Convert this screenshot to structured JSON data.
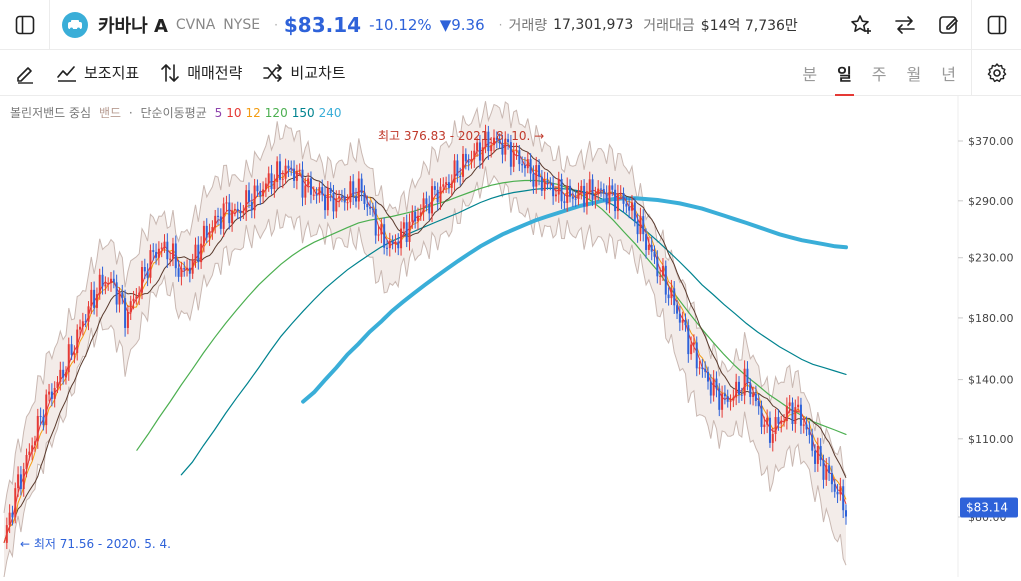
{
  "header": {
    "name": "카바나 A",
    "symbol": "CVNA",
    "exchange": "NYSE",
    "price": "$83.14",
    "change_pct": "-10.12%",
    "change_abs": "▼9.36",
    "volume_label": "거래량",
    "volume_value": "17,301,973",
    "turnover_label": "거래대금",
    "turnover_value": "$14억 7,736만"
  },
  "toolbar": {
    "indicators": "보조지표",
    "strategy": "매매전략",
    "compare": "비교차트",
    "periods": [
      "분",
      "일",
      "주",
      "월",
      "년"
    ],
    "active_period": "일"
  },
  "legend": {
    "bollinger": "볼린저밴드 중심",
    "band": "밴드",
    "sma_label": "단순이동평균",
    "sma": [
      {
        "label": "5",
        "color": "#8e44ad"
      },
      {
        "label": "10",
        "color": "#e53935"
      },
      {
        "label": "12",
        "color": "#f39c12"
      },
      {
        "label": "120",
        "color": "#4caf50"
      },
      {
        "label": "150",
        "color": "#00838f"
      },
      {
        "label": "240",
        "color": "#3aaed8"
      }
    ]
  },
  "colors": {
    "up": "#e53935",
    "down": "#2e62d9",
    "band_fill": "#f3ece9",
    "band_line": "#c9b8b2"
  },
  "chart_data": {
    "type": "candlestick",
    "y_ticks": [
      "$370.00",
      "$290.00",
      "$230.00",
      "$180.00",
      "$140.00",
      "$110.00",
      "$80.00"
    ],
    "last_price": "$83.14",
    "high_annotation": "최고 376.83 - 2021. 8. 10.",
    "low_annotation": "최저 71.56 - 2020. 5. 4.",
    "price_path": [
      72,
      88,
      100,
      115,
      130,
      140,
      155,
      175,
      195,
      210,
      205,
      180,
      200,
      225,
      240,
      235,
      215,
      225,
      250,
      265,
      280,
      275,
      290,
      300,
      315,
      325,
      330,
      310,
      300,
      295,
      290,
      295,
      305,
      280,
      250,
      240,
      255,
      270,
      285,
      300,
      310,
      330,
      345,
      360,
      370,
      365,
      350,
      335,
      320,
      310,
      300,
      295,
      298,
      302,
      300,
      296,
      290,
      270,
      245,
      220,
      200,
      180,
      160,
      145,
      135,
      128,
      132,
      140,
      125,
      112,
      118,
      125,
      120,
      105,
      98,
      90,
      83
    ],
    "sma240_path": [
      null,
      null,
      null,
      null,
      null,
      null,
      null,
      null,
      null,
      null,
      null,
      null,
      null,
      null,
      null,
      null,
      null,
      null,
      null,
      null,
      null,
      null,
      null,
      null,
      null,
      null,
      null,
      128,
      133,
      140,
      147,
      155,
      162,
      170,
      177,
      185,
      192,
      199,
      206,
      213,
      220,
      227,
      234,
      241,
      247,
      253,
      258,
      263,
      268,
      272,
      276,
      280,
      284,
      287,
      290,
      292,
      293,
      293,
      292,
      291,
      289,
      287,
      284,
      281,
      277,
      273,
      269,
      265,
      261,
      257,
      253,
      250,
      247,
      245,
      243,
      241,
      240
    ],
    "sma150_path": [
      null,
      null,
      null,
      null,
      null,
      null,
      null,
      null,
      null,
      null,
      null,
      null,
      null,
      null,
      null,
      null,
      95,
      100,
      107,
      114,
      122,
      130,
      138,
      147,
      157,
      167,
      176,
      185,
      194,
      203,
      211,
      219,
      226,
      233,
      240,
      246,
      251,
      256,
      261,
      266,
      271,
      276,
      282,
      288,
      293,
      297,
      300,
      302,
      304,
      305,
      305,
      304,
      302,
      298,
      292,
      285,
      276,
      266,
      256,
      246,
      236,
      226,
      216,
      206,
      198,
      190,
      183,
      176,
      170,
      165,
      160,
      156,
      152,
      149,
      147,
      145,
      143
    ],
    "sma120_path": [
      null,
      null,
      null,
      null,
      null,
      null,
      null,
      null,
      null,
      null,
      null,
      null,
      105,
      112,
      120,
      128,
      137,
      146,
      156,
      166,
      176,
      186,
      196,
      206,
      215,
      224,
      232,
      239,
      245,
      250,
      255,
      260,
      265,
      268,
      270,
      272,
      275,
      278,
      282,
      286,
      290,
      295,
      300,
      305,
      309,
      312,
      314,
      315,
      315,
      313,
      310,
      305,
      298,
      290,
      280,
      268,
      255,
      243,
      230,
      218,
      205,
      193,
      182,
      172,
      163,
      155,
      148,
      142,
      137,
      132,
      128,
      124,
      121,
      118,
      116,
      114,
      112
    ]
  }
}
